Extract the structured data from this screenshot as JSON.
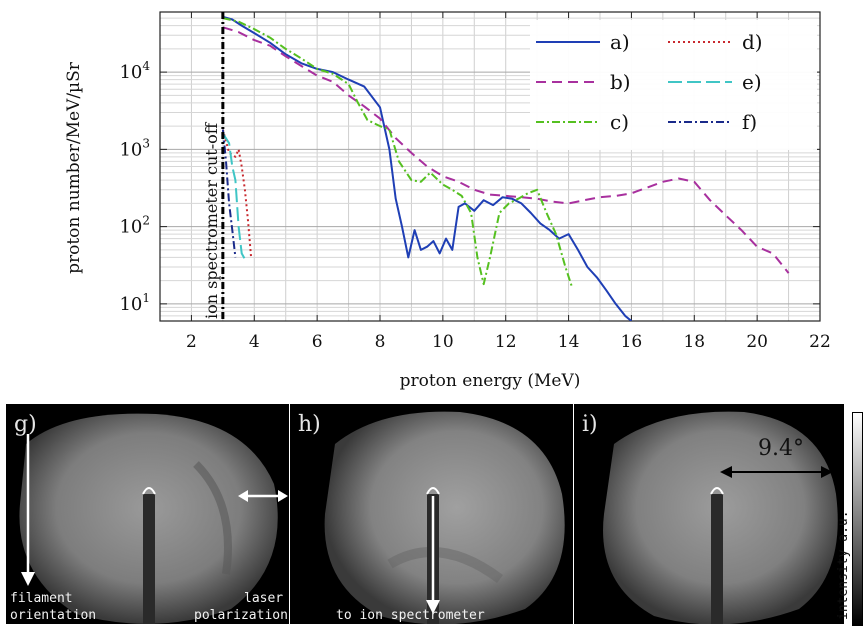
{
  "chart_data": {
    "type": "line",
    "xlabel": "proton energy (MeV)",
    "ylabel": "proton number/MeV/µSr",
    "xlim": [
      1,
      22
    ],
    "ylim": [
      6,
      60000
    ],
    "yscale": "log",
    "xticks": [
      "2",
      "4",
      "6",
      "8",
      "10",
      "12",
      "14",
      "16",
      "18",
      "20",
      "22"
    ],
    "yticks": [
      "10^1",
      "10^2",
      "10^3",
      "10^4"
    ],
    "grid": true,
    "legend_position": "top-right",
    "annotation": "ion spectrometer cut-off",
    "cutoff_x": 3,
    "series": [
      {
        "name": "a)",
        "color": "#1f3fb5",
        "dash": "solid",
        "x": [
          3.0,
          3.3,
          3.6,
          4.0,
          4.5,
          5.0,
          5.5,
          6.0,
          6.5,
          7.0,
          7.5,
          8.0,
          8.3,
          8.5,
          8.7,
          8.9,
          9.1,
          9.3,
          9.5,
          9.7,
          9.9,
          10.1,
          10.3,
          10.5,
          10.7,
          11.0,
          11.3,
          11.6,
          11.9,
          12.2,
          12.5,
          12.8,
          13.1,
          13.4,
          13.7,
          14.0,
          14.3,
          14.6,
          14.9,
          15.2,
          15.5,
          15.8,
          16.0
        ],
        "y": [
          52000,
          48000,
          40000,
          32000,
          24000,
          17000,
          13000,
          11000,
          10000,
          8000,
          6500,
          3500,
          1000,
          230,
          100,
          40,
          90,
          50,
          55,
          65,
          45,
          70,
          50,
          180,
          200,
          160,
          220,
          190,
          240,
          230,
          200,
          150,
          110,
          90,
          70,
          80,
          50,
          30,
          22,
          15,
          10,
          7,
          6
        ]
      },
      {
        "name": "b)",
        "color": "#a8309e",
        "dash": "10 6",
        "x": [
          3.0,
          3.5,
          4.0,
          4.5,
          5.0,
          5.5,
          6.0,
          6.5,
          7.0,
          7.5,
          8.0,
          8.5,
          9.0,
          9.5,
          10.0,
          10.5,
          11.0,
          11.5,
          12.0,
          12.5,
          13.0,
          13.5,
          14.0,
          14.5,
          15.0,
          15.5,
          16.0,
          16.5,
          17.0,
          17.5,
          18.0,
          18.5,
          19.0,
          19.5,
          20.0,
          20.5,
          21.0
        ],
        "y": [
          38000,
          33000,
          26000,
          22000,
          16000,
          12000,
          9000,
          7500,
          5000,
          3600,
          2500,
          1400,
          900,
          600,
          450,
          380,
          300,
          260,
          250,
          240,
          230,
          210,
          200,
          220,
          240,
          250,
          270,
          320,
          380,
          420,
          380,
          220,
          140,
          90,
          55,
          45,
          25
        ]
      },
      {
        "name": "c)",
        "color": "#55c020",
        "dash": "8 3 2 3",
        "x": [
          3.0,
          3.5,
          4.0,
          4.5,
          5.0,
          5.5,
          6.0,
          6.5,
          7.0,
          7.3,
          7.6,
          8.0,
          8.3,
          8.6,
          9.0,
          9.3,
          9.6,
          10.0,
          10.3,
          10.6,
          10.9,
          11.1,
          11.3,
          11.5,
          11.8,
          12.1,
          12.4,
          12.7,
          13.0,
          13.3,
          13.6,
          13.9,
          14.1
        ],
        "y": [
          50000,
          45000,
          36000,
          28000,
          20000,
          15000,
          11000,
          9500,
          7000,
          4000,
          2400,
          2000,
          1800,
          700,
          400,
          380,
          500,
          350,
          300,
          250,
          150,
          40,
          18,
          40,
          150,
          200,
          230,
          270,
          300,
          150,
          80,
          30,
          17
        ]
      },
      {
        "name": "d)",
        "color": "#c8282e",
        "dash": "2 3",
        "x": [
          3.0,
          3.2,
          3.4,
          3.5,
          3.6,
          3.7,
          3.8,
          3.9
        ],
        "y": [
          1800,
          900,
          800,
          1000,
          600,
          300,
          120,
          40
        ]
      },
      {
        "name": "e)",
        "color": "#3fc5c5",
        "dash": "14 5",
        "x": [
          3.0,
          3.2,
          3.3,
          3.4,
          3.5,
          3.6,
          3.7
        ],
        "y": [
          1600,
          1200,
          600,
          400,
          100,
          45,
          38
        ]
      },
      {
        "name": "f)",
        "color": "#1a2a8a",
        "dash": "8 3 2 3",
        "x": [
          3.0,
          3.1,
          3.2,
          3.3,
          3.4
        ],
        "y": [
          1800,
          700,
          200,
          90,
          40
        ]
      }
    ]
  },
  "panels": [
    {
      "label": "g)",
      "text_left_1": "filament",
      "text_left_2": "orientation",
      "text_right_1": "laser",
      "text_right_2": "polarization"
    },
    {
      "label": "h)",
      "text_bottom": "to ion spectrometer"
    },
    {
      "label": "i)",
      "angle": "9.4°"
    }
  ],
  "colorbar_label": "intensity a.u."
}
